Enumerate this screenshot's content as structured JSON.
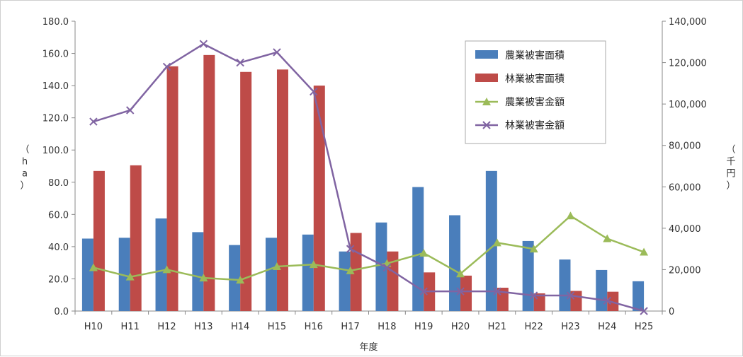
{
  "chart_data": {
    "type": "bar",
    "categories": [
      "H10",
      "H11",
      "H12",
      "H13",
      "H14",
      "H15",
      "H16",
      "H17",
      "H18",
      "H19",
      "H20",
      "H21",
      "H22",
      "H23",
      "H24",
      "H25"
    ],
    "xlabel": "年度",
    "ylabel_left": "（ha）",
    "ylabel_right": "（千円）",
    "ylim_left": [
      0,
      180
    ],
    "ylim_right": [
      0,
      140000
    ],
    "yticks_left": [
      "0.0",
      "20.0",
      "40.0",
      "60.0",
      "80.0",
      "100.0",
      "120.0",
      "140.0",
      "160.0",
      "180.0"
    ],
    "yticks_right": [
      "0",
      "20,000",
      "40,000",
      "60,000",
      "80,000",
      "100,000",
      "120,000",
      "140,000"
    ],
    "legend_position": "top-right",
    "grid": false,
    "series": [
      {
        "name": "農業被害面積",
        "type": "bar",
        "axis": "left",
        "color": "#4a7ebb",
        "values": [
          45,
          45.5,
          57.5,
          49,
          41,
          45.5,
          47.5,
          37,
          55,
          77,
          59.5,
          87,
          43.5,
          32,
          25.5,
          18.5
        ]
      },
      {
        "name": "林業被害面積",
        "type": "bar",
        "axis": "left",
        "color": "#be4b48",
        "values": [
          87,
          90.5,
          152,
          159,
          148.5,
          150,
          140,
          48.5,
          37,
          24,
          22,
          14.5,
          11,
          12.5,
          12,
          0
        ]
      },
      {
        "name": "農業被害金額",
        "type": "line",
        "axis": "right",
        "color": "#9bbb59",
        "marker": "triangle",
        "values": [
          21000,
          16500,
          20000,
          16000,
          15000,
          21500,
          22500,
          19500,
          23000,
          28000,
          18000,
          33000,
          30000,
          46000,
          35000,
          28500
        ]
      },
      {
        "name": "林業被害金額",
        "type": "line",
        "axis": "right",
        "color": "#8064a2",
        "marker": "x",
        "values": [
          91500,
          97000,
          118000,
          129000,
          120000,
          125000,
          106000,
          30000,
          21000,
          9500,
          9500,
          9500,
          7500,
          7500,
          5000,
          0
        ]
      }
    ]
  }
}
